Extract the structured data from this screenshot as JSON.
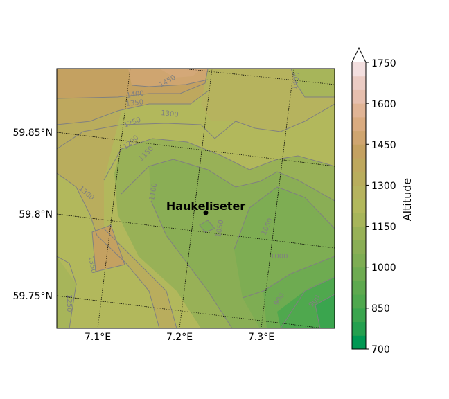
{
  "map": {
    "station": {
      "label": "Haukeliseter"
    },
    "lat_labels": [
      "59.85°N",
      "59.8°N",
      "59.75°N"
    ],
    "lon_labels": [
      "7.1°E",
      "7.2°E",
      "7.3°E"
    ],
    "contour_labels": [
      "1400",
      "1450",
      "1350",
      "1300",
      "1250",
      "1200",
      "1150",
      "1100",
      "1300",
      "1350",
      "1250",
      "1050",
      "1050",
      "1000",
      "900",
      "900",
      "1400"
    ]
  },
  "colorbar": {
    "label": "Altitude",
    "tick_labels": [
      "1750",
      "1600",
      "1450",
      "1300",
      "1150",
      "1000",
      "850",
      "700"
    ],
    "levels": [
      700,
      750,
      800,
      850,
      900,
      950,
      1000,
      1050,
      1100,
      1150,
      1200,
      1250,
      1300,
      1350,
      1400,
      1450,
      1500,
      1550,
      1600,
      1650,
      1700,
      1750
    ],
    "colors": [
      "#009853",
      "#24a04f",
      "#3aa54e",
      "#4fa84e",
      "#5ea94f",
      "#6eab51",
      "#7ead53",
      "#8aae55",
      "#98b157",
      "#a7b55a",
      "#b2b85c",
      "#b6b35e",
      "#b9ad5d",
      "#bea85e",
      "#c4a161",
      "#cfa570",
      "#d9ab80",
      "#e0b495",
      "#e6bfae",
      "#ebccc4",
      "#f3dfdf",
      "#ffffff"
    ],
    "extend": "max"
  }
}
